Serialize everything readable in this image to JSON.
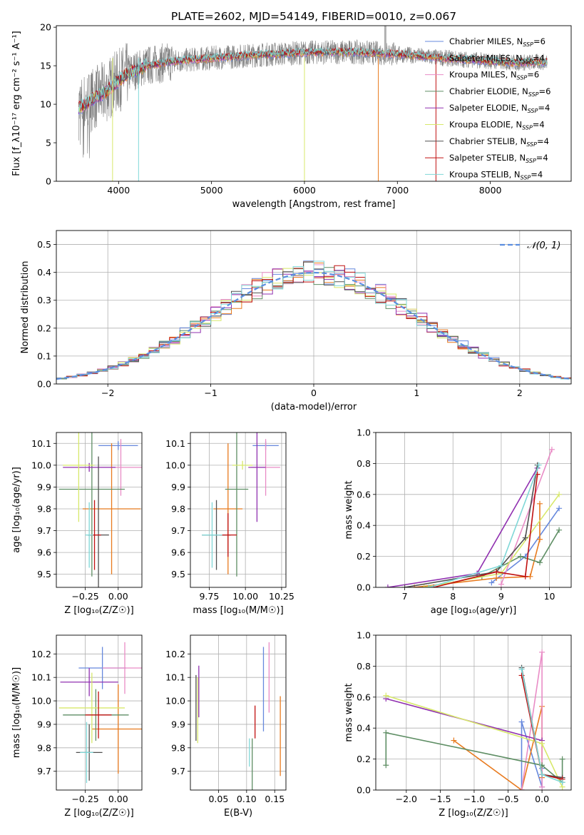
{
  "title": "PLATE=2602, MJD=54149, FIBERID=0010, z=0.067",
  "colors": {
    "grid": "#b0b0b0",
    "spectrum_gray": "#7f7f7f",
    "series": [
      "#6688dd",
      "#e87a1e",
      "#e98cc6",
      "#5e8e64",
      "#9030b0",
      "#d7e86a",
      "#505050",
      "#c01010",
      "#7fd7d7"
    ]
  },
  "chart_data": [
    {
      "id": "spectrum",
      "type": "line",
      "title": "PLATE=2602, MJD=54149, FIBERID=0010, z=0.067",
      "xlabel": "wavelength [Angstrom, rest frame]",
      "ylabel": "Flux [f_λ10⁻¹⁷ erg cm⁻² s⁻¹ A⁻¹]",
      "xlim": [
        3330,
        8870
      ],
      "ylim": [
        0,
        20.2
      ],
      "xticks": [
        "4000",
        "5000",
        "6000",
        "7000",
        "8000"
      ],
      "yticks": [
        "0",
        "5",
        "10",
        "15",
        "20"
      ],
      "grid": false,
      "legend_position": "top-right",
      "data_x_range": [
        3570,
        8610
      ],
      "continuum": [
        [
          3570,
          9.5
        ],
        [
          3700,
          10.5
        ],
        [
          3850,
          11.5
        ],
        [
          3950,
          12.6
        ],
        [
          4100,
          14.0
        ],
        [
          4300,
          15.0
        ],
        [
          4600,
          15.6
        ],
        [
          5000,
          16.0
        ],
        [
          5500,
          16.4
        ],
        [
          6000,
          16.7
        ],
        [
          6500,
          16.8
        ],
        [
          7000,
          16.5
        ],
        [
          7500,
          16.0
        ],
        [
          8000,
          15.6
        ],
        [
          8300,
          15.4
        ],
        [
          8610,
          15.5
        ]
      ],
      "legend": [
        {
          "label": "Chabrier MILES, N",
          "sub": "SSP",
          "suffix": "=6"
        },
        {
          "label": "Salpeter MILES, N",
          "sub": "SSP",
          "suffix": "=4"
        },
        {
          "label": "Kroupa MILES, N",
          "sub": "SSP",
          "suffix": "=6"
        },
        {
          "label": "Chabrier ELODIE, N",
          "sub": "SSP",
          "suffix": "=6"
        },
        {
          "label": "Salpeter ELODIE, N",
          "sub": "SSP",
          "suffix": "=4"
        },
        {
          "label": "Kroupa ELODIE, N",
          "sub": "SSP",
          "suffix": "=4"
        },
        {
          "label": "Chabrier STELIB, N",
          "sub": "SSP",
          "suffix": "=4"
        },
        {
          "label": "Salpeter STELIB, N",
          "sub": "SSP",
          "suffix": "=4"
        },
        {
          "label": "Kroupa STELIB, N",
          "sub": "SSP",
          "suffix": "=4"
        }
      ]
    },
    {
      "id": "residuals",
      "type": "histogram",
      "xlabel": "(data-model)/error",
      "ylabel": "Normed distribution",
      "xlim": [
        -2.5,
        2.5
      ],
      "ylim": [
        0,
        0.55
      ],
      "xticks": [
        "−2",
        "−1",
        "0",
        "1",
        "2"
      ],
      "yticks": [
        "0.0",
        "0.1",
        "0.2",
        "0.3",
        "0.4",
        "0.5"
      ],
      "grid": true,
      "legend": [
        {
          "label": "𝒩(0, 1)",
          "style": "dashed"
        }
      ],
      "legend_position": "top-right",
      "bin_width": 0.1
    },
    {
      "id": "age_vs_Z",
      "type": "errorbar",
      "xlabel": "Z [log₁₀(Z/Z☉)]",
      "ylabel": "age  [log₁₀(age/yr)]",
      "xlim": [
        -0.47,
        0.18
      ],
      "ylim": [
        9.44,
        10.15
      ],
      "xticks": [
        "−0.25",
        "0.00"
      ],
      "yticks": [
        "9.5",
        "9.6",
        "9.7",
        "9.8",
        "9.9",
        "10.0",
        "10.1"
      ],
      "grid": true,
      "points": [
        {
          "series": 0,
          "x": 0.0,
          "xerr": 0.15,
          "y": 10.09,
          "yerr": 0.02
        },
        {
          "series": 1,
          "x": -0.05,
          "xerr": 0.22,
          "y": 9.8,
          "yerr": 0.3
        },
        {
          "series": 2,
          "x": 0.02,
          "xerr": 0.18,
          "y": 9.99,
          "yerr": 0.13
        },
        {
          "series": 3,
          "x": -0.2,
          "xerr": 0.25,
          "y": 9.89,
          "yerr": 0.4
        },
        {
          "series": 4,
          "x": -0.22,
          "xerr": 0.2,
          "y": 9.99,
          "yerr": 0.02
        },
        {
          "series": 5,
          "x": -0.3,
          "xerr": 0.12,
          "y": 10.0,
          "yerr": 0.26
        },
        {
          "series": 6,
          "x": -0.15,
          "xerr": 0.08,
          "y": 9.68,
          "yerr": 0.36
        },
        {
          "series": 7,
          "x": -0.18,
          "xerr": 0.05,
          "y": 9.68,
          "yerr": 0.16
        },
        {
          "series": 8,
          "x": -0.22,
          "xerr": 0.03,
          "y": 9.68,
          "yerr": 0.15
        }
      ]
    },
    {
      "id": "age_vs_mass",
      "type": "errorbar",
      "xlabel": "mass [log₁₀(M/M☉)]",
      "ylabel": "",
      "xlim": [
        9.62,
        10.28
      ],
      "ylim": [
        9.44,
        10.15
      ],
      "xticks": [
        "9.75",
        "10.00",
        "10.25"
      ],
      "yticks": [
        "9.5",
        "9.6",
        "9.7",
        "9.8",
        "9.9",
        "10.0",
        "10.1"
      ],
      "grid": true,
      "points": [
        {
          "series": 0,
          "x": 10.14,
          "xerr": 0.09,
          "y": 10.09,
          "yerr": 0.02
        },
        {
          "series": 1,
          "x": 9.88,
          "xerr": 0.1,
          "y": 9.8,
          "yerr": 0.3
        },
        {
          "series": 2,
          "x": 10.14,
          "xerr": 0.1,
          "y": 9.99,
          "yerr": 0.13
        },
        {
          "series": 3,
          "x": 9.94,
          "xerr": 0.08,
          "y": 9.89,
          "yerr": 0.4
        },
        {
          "series": 4,
          "x": 10.08,
          "xerr": 0.06,
          "y": 9.99,
          "yerr": 0.25
        },
        {
          "series": 5,
          "x": 9.98,
          "xerr": 0.07,
          "y": 10.0,
          "yerr": 0.02
        },
        {
          "series": 6,
          "x": 9.8,
          "xerr": 0.1,
          "y": 9.68,
          "yerr": 0.16
        },
        {
          "series": 7,
          "x": 9.88,
          "xerr": 0.06,
          "y": 9.68,
          "yerr": 0.1
        },
        {
          "series": 8,
          "x": 9.77,
          "xerr": 0.07,
          "y": 9.68,
          "yerr": 0.15
        }
      ]
    },
    {
      "id": "mass_weight_vs_age",
      "type": "line",
      "xlabel": "age  [log₁₀(age/yr)]",
      "ylabel": "mass weight",
      "xlim": [
        6.4,
        10.45
      ],
      "ylim": [
        0,
        1.0
      ],
      "xticks": [
        "7",
        "8",
        "9",
        "10"
      ],
      "yticks": [
        "0.0",
        "0.2",
        "0.4",
        "0.6",
        "0.8",
        "1.0"
      ],
      "grid": true,
      "series": [
        {
          "series": 0,
          "points": [
            [
              8.8,
              0.03
            ],
            [
              9.5,
              0.2
            ],
            [
              10.2,
              0.51
            ]
          ]
        },
        {
          "series": 1,
          "points": [
            [
              7.2,
              0.0
            ],
            [
              8.9,
              0.06
            ],
            [
              9.6,
              0.07
            ],
            [
              9.8,
              0.31
            ],
            [
              9.8,
              0.54
            ]
          ]
        },
        {
          "series": 2,
          "points": [
            [
              9.0,
              0.02
            ],
            [
              10.05,
              0.89
            ]
          ]
        },
        {
          "series": 3,
          "points": [
            [
              8.6,
              0.07
            ],
            [
              9.4,
              0.2
            ],
            [
              9.8,
              0.16
            ],
            [
              10.2,
              0.37
            ]
          ]
        },
        {
          "series": 4,
          "points": [
            [
              6.65,
              0.0
            ],
            [
              8.5,
              0.09
            ],
            [
              9.75,
              0.77
            ]
          ]
        },
        {
          "series": 5,
          "points": [
            [
              7.4,
              0.0
            ],
            [
              9.0,
              0.09
            ],
            [
              10.2,
              0.6
            ]
          ]
        },
        {
          "series": 6,
          "points": [
            [
              7.0,
              0.0
            ],
            [
              8.9,
              0.1
            ],
            [
              9.5,
              0.32
            ],
            [
              9.75,
              0.79
            ]
          ]
        },
        {
          "series": 7,
          "points": [
            [
              7.6,
              0.0
            ],
            [
              8.9,
              0.1
            ],
            [
              9.5,
              0.07
            ],
            [
              9.75,
              0.73
            ]
          ]
        },
        {
          "series": 8,
          "points": [
            [
              7.5,
              0.0
            ],
            [
              9.0,
              0.14
            ],
            [
              9.78,
              0.79
            ]
          ]
        }
      ]
    },
    {
      "id": "mass_vs_Z",
      "type": "errorbar",
      "xlabel": "Z [log₁₀(Z/Z☉)]",
      "ylabel": "mass [log₁₀(M/M☉)]",
      "xlim": [
        -0.47,
        0.18
      ],
      "ylim": [
        9.62,
        10.28
      ],
      "xticks": [
        "−0.25",
        "0.00"
      ],
      "yticks": [
        "9.7",
        "9.8",
        "9.9",
        "10.0",
        "10.1",
        "10.2"
      ],
      "grid": true,
      "points": [
        {
          "series": 0,
          "x": -0.12,
          "xerr": 0.18,
          "y": 10.14,
          "yerr": 0.09
        },
        {
          "series": 1,
          "x": 0.0,
          "xerr": 0.2,
          "y": 9.88,
          "yerr": 0.19
        },
        {
          "series": 2,
          "x": 0.05,
          "xerr": 0.17,
          "y": 10.14,
          "yerr": 0.11
        },
        {
          "series": 3,
          "x": -0.17,
          "xerr": 0.25,
          "y": 9.94,
          "yerr": 0.11
        },
        {
          "series": 4,
          "x": -0.22,
          "xerr": 0.22,
          "y": 10.08,
          "yerr": 0.06
        },
        {
          "series": 5,
          "x": -0.2,
          "xerr": 0.25,
          "y": 9.97,
          "yerr": 0.15
        },
        {
          "series": 6,
          "x": -0.22,
          "xerr": 0.1,
          "y": 9.78,
          "yerr": 0.12
        },
        {
          "series": 7,
          "x": -0.15,
          "xerr": 0.1,
          "y": 9.94,
          "yerr": 0.1
        },
        {
          "series": 8,
          "x": -0.24,
          "xerr": 0.05,
          "y": 9.78,
          "yerr": 0.13
        }
      ]
    },
    {
      "id": "mass_vs_EBV",
      "type": "errorbar",
      "xlabel": "E(B-V)",
      "ylabel": "",
      "xlim": [
        0.0,
        0.17
      ],
      "ylim": [
        9.62,
        10.28
      ],
      "xticks": [
        "0.05",
        "0.10",
        "0.15"
      ],
      "yticks": [
        "9.7",
        "9.8",
        "9.9",
        "10.0",
        "10.1",
        "10.2"
      ],
      "grid": true,
      "points": [
        {
          "series": 0,
          "x": 0.13,
          "y": 10.05,
          "yerr": 0.18
        },
        {
          "series": 1,
          "x": 0.16,
          "y": 9.85,
          "yerr": 0.17
        },
        {
          "series": 2,
          "x": 0.14,
          "y": 10.1,
          "yerr": 0.15
        },
        {
          "series": 3,
          "x": 0.11,
          "y": 9.72,
          "yerr": 0.12
        },
        {
          "series": 4,
          "x": 0.015,
          "y": 10.04,
          "yerr": 0.11
        },
        {
          "series": 5,
          "x": 0.013,
          "y": 9.96,
          "yerr": 0.14
        },
        {
          "series": 6,
          "x": 0.01,
          "y": 9.97,
          "yerr": 0.14
        },
        {
          "series": 7,
          "x": 0.115,
          "y": 9.91,
          "yerr": 0.07
        },
        {
          "series": 8,
          "x": 0.105,
          "y": 9.78,
          "yerr": 0.06
        }
      ]
    },
    {
      "id": "mass_weight_vs_Z",
      "type": "line",
      "xlabel": "Z [log₁₀(Z/Z☉)]",
      "ylabel": "mass weight",
      "xlim": [
        -2.45,
        0.43
      ],
      "ylim": [
        0,
        1.0
      ],
      "xticks": [
        "−2.0",
        "−1.5",
        "−1.0",
        "−0.5",
        "0.0"
      ],
      "yticks": [
        "0.0",
        "0.2",
        "0.4",
        "0.6",
        "0.8",
        "1.0"
      ],
      "grid": true,
      "series": [
        {
          "series": 0,
          "points": [
            [
              -0.3,
              0.0
            ],
            [
              -0.3,
              0.44
            ],
            [
              0.0,
              0.02
            ],
            [
              0.0,
              0.14
            ]
          ]
        },
        {
          "series": 1,
          "points": [
            [
              -1.3,
              0.32
            ],
            [
              -0.3,
              0.0
            ],
            [
              0.0,
              0.54
            ],
            [
              0.0,
              0.08
            ]
          ]
        },
        {
          "series": 2,
          "points": [
            [
              -0.3,
              0.0
            ],
            [
              0.0,
              0.89
            ],
            [
              0.0,
              0.02
            ]
          ]
        },
        {
          "series": 3,
          "points": [
            [
              -2.3,
              0.16
            ],
            [
              -2.3,
              0.37
            ],
            [
              0.0,
              0.16
            ],
            [
              0.3,
              0.05
            ],
            [
              0.3,
              0.2
            ]
          ]
        },
        {
          "series": 4,
          "points": [
            [
              -2.3,
              0.59
            ],
            [
              0.0,
              0.32
            ]
          ]
        },
        {
          "series": 5,
          "points": [
            [
              -2.3,
              0.61
            ],
            [
              0.0,
              0.3
            ],
            [
              0.3,
              0.02
            ]
          ]
        },
        {
          "series": 6,
          "points": [
            [
              -0.3,
              0.79
            ],
            [
              0.0,
              0.1
            ],
            [
              0.3,
              0.08
            ]
          ]
        },
        {
          "series": 7,
          "points": [
            [
              -0.3,
              0.74
            ],
            [
              0.0,
              0.1
            ],
            [
              0.3,
              0.07
            ]
          ]
        },
        {
          "series": 8,
          "points": [
            [
              -0.3,
              0.78
            ],
            [
              0.0,
              0.1
            ],
            [
              0.3,
              0.05
            ]
          ]
        }
      ]
    }
  ]
}
